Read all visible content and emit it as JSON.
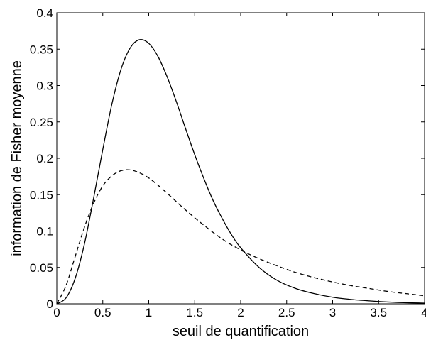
{
  "chart_data": {
    "type": "line",
    "title": "",
    "xlabel": "seuil de quantification",
    "ylabel": "information de Fisher moyenne",
    "xlim": [
      0,
      4
    ],
    "ylim": [
      0,
      0.4
    ],
    "xticks": [
      0,
      0.5,
      1,
      1.5,
      2,
      2.5,
      3,
      3.5,
      4
    ],
    "yticks": [
      0,
      0.05,
      0.1,
      0.15,
      0.2,
      0.25,
      0.3,
      0.35,
      0.4
    ],
    "xtick_labels": [
      "0",
      "0.5",
      "1",
      "1.5",
      "2",
      "2.5",
      "3",
      "3.5",
      "4"
    ],
    "ytick_labels": [
      "0",
      "0.05",
      "0.1",
      "0.15",
      "0.2",
      "0.25",
      "0.3",
      "0.35",
      "0.4"
    ],
    "grid": false,
    "legend": "none",
    "series": [
      {
        "style": "solid",
        "color": "#000000",
        "x": [
          0,
          0.1,
          0.2,
          0.3,
          0.4,
          0.5,
          0.6,
          0.7,
          0.8,
          0.9,
          1.0,
          1.1,
          1.2,
          1.3,
          1.4,
          1.5,
          1.6,
          1.7,
          1.8,
          1.9,
          2.0,
          2.2,
          2.4,
          2.6,
          2.8,
          3.0,
          3.2,
          3.4,
          3.6,
          3.8,
          4.0
        ],
        "y": [
          0,
          0.008,
          0.035,
          0.082,
          0.145,
          0.212,
          0.275,
          0.323,
          0.352,
          0.363,
          0.358,
          0.34,
          0.312,
          0.278,
          0.241,
          0.205,
          0.172,
          0.142,
          0.117,
          0.095,
          0.077,
          0.05,
          0.032,
          0.021,
          0.014,
          0.009,
          0.006,
          0.004,
          0.0025,
          0.0015,
          0.001
        ]
      },
      {
        "style": "dashed",
        "color": "#000000",
        "x": [
          0,
          0.1,
          0.2,
          0.3,
          0.4,
          0.5,
          0.6,
          0.7,
          0.8,
          0.9,
          1.0,
          1.1,
          1.2,
          1.4,
          1.6,
          1.8,
          2.0,
          2.2,
          2.4,
          2.6,
          2.8,
          3.0,
          3.2,
          3.4,
          3.6,
          3.8,
          4.0
        ],
        "y": [
          0,
          0.025,
          0.065,
          0.105,
          0.138,
          0.162,
          0.176,
          0.183,
          0.184,
          0.18,
          0.173,
          0.163,
          0.152,
          0.129,
          0.108,
          0.089,
          0.074,
          0.062,
          0.052,
          0.043,
          0.036,
          0.03,
          0.025,
          0.021,
          0.017,
          0.014,
          0.011
        ]
      }
    ]
  }
}
